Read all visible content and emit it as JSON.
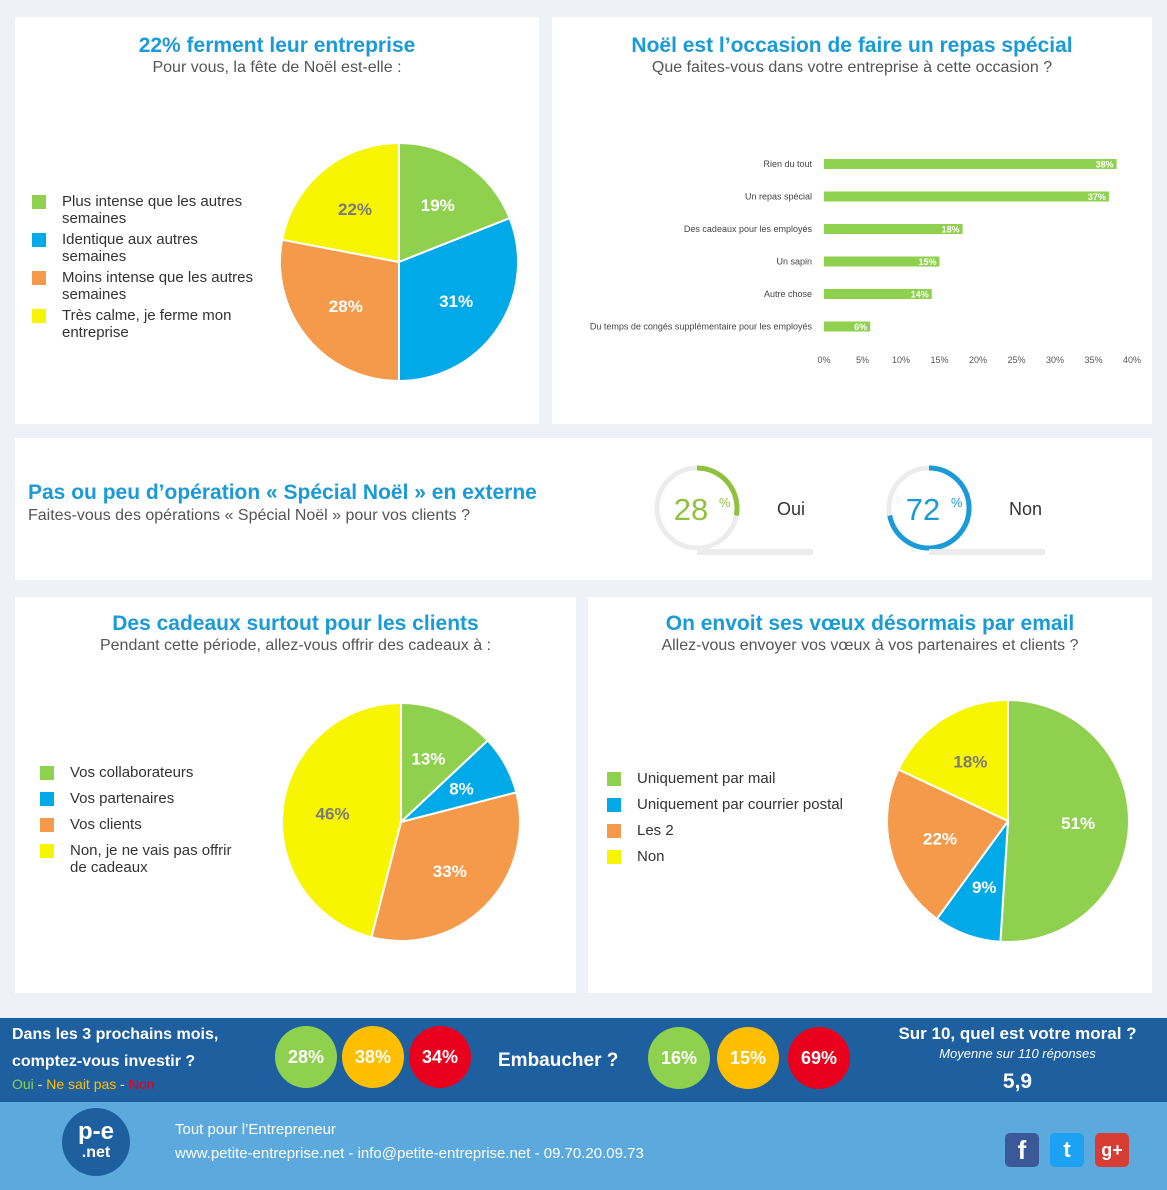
{
  "panel1": {
    "title": "22% ferment leur entreprise",
    "subtitle": "Pour vous, la fête de Noël est-elle :",
    "legend": [
      {
        "lines": [
          "Plus intense que les autres",
          "semaines"
        ],
        "color": "#8fd14f"
      },
      {
        "lines": [
          "Identique aux autres",
          "semaines"
        ],
        "color": "#00a9e8"
      },
      {
        "lines": [
          "Moins intense que les autres",
          "semaines"
        ],
        "color": "#f5994a"
      },
      {
        "lines": [
          "Très calme, je ferme mon",
          "entreprise"
        ],
        "color": "#f8f500"
      }
    ]
  },
  "panel2": {
    "title": "Noël est l’occasion de faire un repas spécial",
    "subtitle": "Que faites-vous dans votre entreprise à cette occasion ?"
  },
  "panel3": {
    "title": "Pas ou peu d’opération « Spécial Noël » en externe",
    "subtitle": "Faites-vous des opérations « Spécial Noël » pour vos clients ?",
    "gauges": [
      {
        "value": 28,
        "display": "28",
        "unit": "%",
        "label": "Oui",
        "color": "#8fc13e"
      },
      {
        "value": 72,
        "display": "72",
        "unit": "%",
        "label": "Non",
        "color": "#1a9ad6"
      }
    ]
  },
  "panel4": {
    "title": "Des cadeaux surtout pour les clients",
    "subtitle": "Pendant cette période, allez-vous offrir des cadeaux à :",
    "legend": [
      {
        "lines": [
          "Vos collaborateurs"
        ],
        "color": "#8fd14f"
      },
      {
        "lines": [
          "Vos partenaires"
        ],
        "color": "#00a9e8"
      },
      {
        "lines": [
          "Vos clients"
        ],
        "color": "#f5994a"
      },
      {
        "lines": [
          "Non, je ne vais pas offrir",
          "de cadeaux"
        ],
        "color": "#f8f500"
      }
    ]
  },
  "panel5": {
    "title": "On envoit ses vœux désormais par email",
    "subtitle": "Allez-vous envoyer vos vœux à vos partenaires et clients ?",
    "legend": [
      {
        "lines": [
          "Uniquement par mail"
        ],
        "color": "#8fd14f"
      },
      {
        "lines": [
          "Uniquement par courrier postal"
        ],
        "color": "#00a9e8"
      },
      {
        "lines": [
          "Les 2"
        ],
        "color": "#f5994a"
      },
      {
        "lines": [
          "Non"
        ],
        "color": "#f8f500"
      }
    ]
  },
  "chart_data": [
    {
      "type": "pie",
      "title": "22% ferment leur entreprise",
      "categories": [
        "Plus intense que les autres semaines",
        "Identique aux autres semaines",
        "Moins intense que les autres semaines",
        "Très calme, je ferme mon entreprise"
      ],
      "values": [
        19,
        31,
        28,
        22
      ],
      "labels": [
        "19%",
        "31%",
        "28%",
        "22%"
      ],
      "colors": [
        "#8fd14f",
        "#00a9e8",
        "#f5994a",
        "#f8f500"
      ],
      "label_colors": [
        "#ffffff",
        "#ffffff",
        "#ffffff",
        "#7a7a7a"
      ]
    },
    {
      "type": "bar",
      "orientation": "horizontal",
      "title": "Noël est l’occasion de faire un repas spécial",
      "categories": [
        "Rien du tout",
        "Un repas spécial",
        "Des cadeaux pour les employés",
        "Un sapin",
        "Autre chose",
        "Du temps de congés supplémentaire pour les employés"
      ],
      "values": [
        38,
        37,
        18,
        15,
        14,
        6
      ],
      "labels": [
        "38%",
        "37%",
        "18%",
        "15%",
        "14%",
        "6%"
      ],
      "ticks": [
        "0%",
        "5%",
        "10%",
        "15%",
        "20%",
        "25%",
        "30%",
        "35%",
        "40%"
      ],
      "xlim": [
        0,
        40
      ],
      "color": "#8fd14f"
    },
    {
      "type": "pie",
      "title": "Des cadeaux surtout pour les clients",
      "categories": [
        "Vos collaborateurs",
        "Vos partenaires",
        "Vos clients",
        "Non, je ne vais pas offrir de cadeaux"
      ],
      "values": [
        13,
        8,
        33,
        46
      ],
      "labels": [
        "13%",
        "8%",
        "33%",
        "46%"
      ],
      "colors": [
        "#8fd14f",
        "#00a9e8",
        "#f5994a",
        "#f8f500"
      ],
      "label_colors": [
        "#ffffff",
        "#ffffff",
        "#ffffff",
        "#7a7a7a"
      ]
    },
    {
      "type": "pie",
      "title": "On envoit ses vœux désormais par email",
      "categories": [
        "Uniquement par mail",
        "Uniquement par courrier postal",
        "Les 2",
        "Non"
      ],
      "values": [
        51,
        9,
        22,
        18
      ],
      "labels": [
        "51%",
        "9%",
        "22%",
        "18%"
      ],
      "colors": [
        "#8fd14f",
        "#00a9e8",
        "#f5994a",
        "#f8f500"
      ],
      "label_colors": [
        "#ffffff",
        "#ffffff",
        "#ffffff",
        "#7a7a7a"
      ]
    }
  ],
  "band": {
    "invest_q1": "Dans les 3 prochains mois,",
    "invest_q2": "comptez-vous investir ?",
    "legend_oui": "Oui",
    "legend_sep1": " - ",
    "legend_nsp": "Ne sait pas",
    "legend_sep2": " - ",
    "legend_non": "Non",
    "invest": [
      {
        "value": "28%",
        "color": "#8fd14f"
      },
      {
        "value": "38%",
        "color": "#ffbf00"
      },
      {
        "value": "34%",
        "color": "#e8001c"
      }
    ],
    "hire_label": "Embaucher ?",
    "hire": [
      {
        "value": "16%",
        "color": "#8fd14f"
      },
      {
        "value": "15%",
        "color": "#ffbf00"
      },
      {
        "value": "69%",
        "color": "#e8001c"
      }
    ],
    "moral_q": "Sur 10, quel est votre moral ?",
    "moral_sub": "Moyenne sur 110 réponses",
    "moral_value": "5,9"
  },
  "footer": {
    "logo_top": "p-e",
    "logo_bottom": ".net",
    "tagline": "Tout pour l’Entrepreneur",
    "contact": "www.petite-entreprise.net - info@petite-entreprise.net - 09.70.20.09.73",
    "social": [
      {
        "name": "facebook-icon",
        "glyph": "f",
        "color": "#3b5998"
      },
      {
        "name": "twitter-icon",
        "glyph": "t",
        "color": "#1da1f2"
      },
      {
        "name": "google-plus-icon",
        "glyph": "g+",
        "color": "#d73d32"
      }
    ]
  }
}
